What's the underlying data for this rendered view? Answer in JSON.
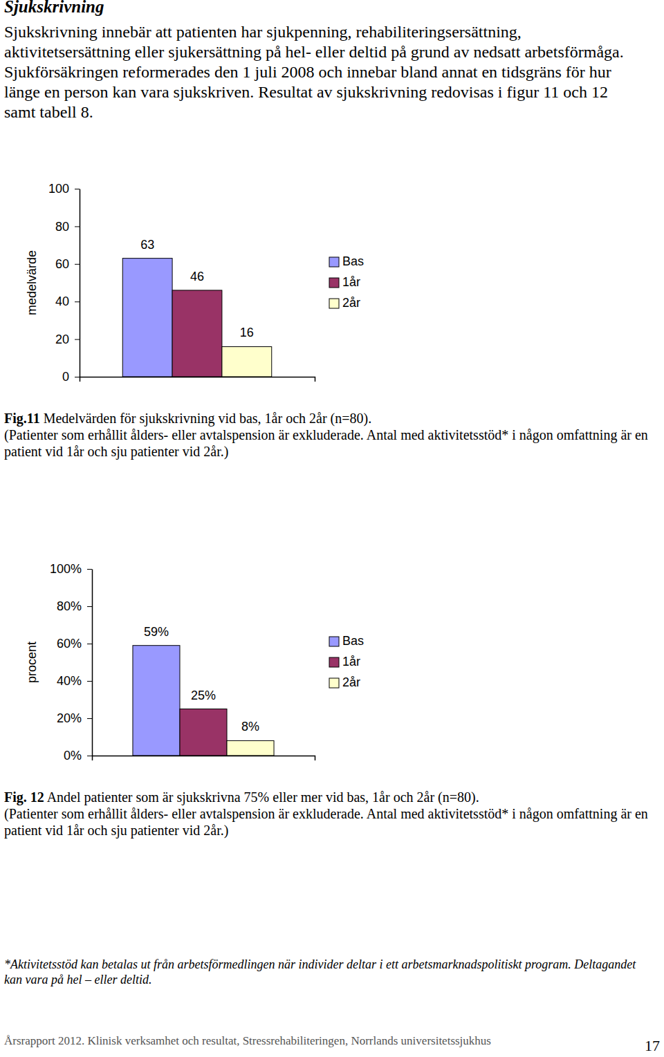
{
  "heading": "Sjukskrivning",
  "paragraph": "Sjukskrivning innebär att patienten har sjukpenning, rehabiliteringsersättning, aktivitetsersättning eller sjukersättning på hel- eller deltid på grund av nedsatt arbetsförmåga. Sjukförsäkringen reformerades den 1 juli 2008 och innebar bland annat en tidsgräns för hur länge en person kan vara sjukskriven. Resultat av sjukskrivning redovisas i figur 11 och 12 samt tabell 8.",
  "chart_data": [
    {
      "type": "bar",
      "y_label": "medelvärde",
      "categories": [
        null
      ],
      "series": [
        {
          "name": "Bas",
          "color": "#9999ff",
          "values": [
            63
          ]
        },
        {
          "name": "1år",
          "color": "#993366",
          "values": [
            46
          ]
        },
        {
          "name": "2år",
          "color": "#ffffcc",
          "values": [
            16
          ]
        }
      ],
      "ylim": [
        0,
        100
      ],
      "yticks": [
        0,
        20,
        40,
        60,
        80,
        100
      ],
      "grid": false,
      "legend": "right",
      "data_labels": true
    },
    {
      "type": "bar",
      "y_label": "procent",
      "categories": [
        null
      ],
      "series": [
        {
          "name": "Bas",
          "color": "#9999ff",
          "values": [
            59
          ],
          "value_labels": [
            "59%"
          ]
        },
        {
          "name": "1år",
          "color": "#993366",
          "values": [
            25
          ],
          "value_labels": [
            "25%"
          ]
        },
        {
          "name": "2år",
          "color": "#ffffcc",
          "values": [
            8
          ],
          "value_labels": [
            "8%"
          ]
        }
      ],
      "ylim": [
        0,
        100
      ],
      "yticks": [
        {
          "value": 0,
          "label": "0%"
        },
        {
          "value": 20,
          "label": "20%"
        },
        {
          "value": 40,
          "label": "40%"
        },
        {
          "value": 60,
          "label": "60%"
        },
        {
          "value": 80,
          "label": "80%"
        },
        {
          "value": 100,
          "label": "100%"
        }
      ],
      "grid": false,
      "legend": "right",
      "data_labels": true
    }
  ],
  "captions": [
    {
      "label": "Fig.11",
      "text": " Medelvärden för sjukskrivning vid bas, 1år och 2år (n=80).",
      "note": "(Patienter som erhållit ålders- eller avtalspension är exkluderade. Antal med aktivitetsstöd* i någon omfattning är en patient vid 1år och sju patienter vid 2år.)"
    },
    {
      "label": "Fig. 12",
      "text": " Andel patienter som är sjukskrivna 75% eller mer vid bas, 1år och 2år (n=80).",
      "note": "(Patienter som erhållit ålders- eller avtalspension är exkluderade. Antal med aktivitetsstöd* i någon omfattning är en patient vid 1år och sju patienter vid 2år.)"
    }
  ],
  "footnote": "*Aktivitetsstöd kan betalas ut från arbetsförmedlingen när individer deltar i ett arbetsmarknadspolitiskt program. Deltagandet kan vara på hel – eller deltid.",
  "footer": "Årsrapport 2012. Klinisk verksamhet och resultat, Stressrehabiliteringen, Norrlands universitetssjukhus",
  "page_number": "17"
}
